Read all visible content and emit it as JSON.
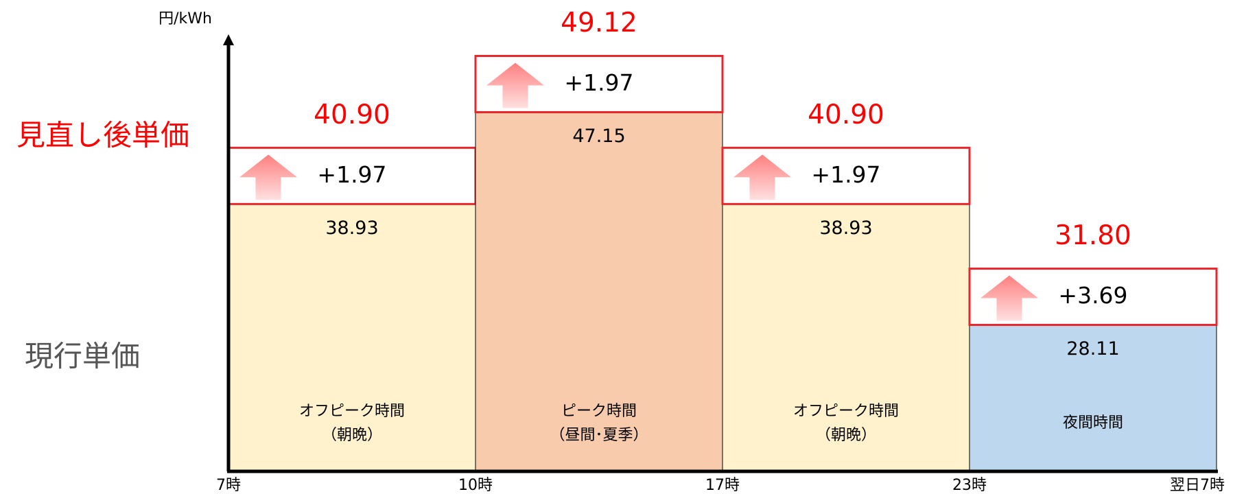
{
  "chart_data": {
    "type": "bar",
    "y_axis_label": "円/kWh",
    "annotations": [
      "見直し後単価",
      "現行単価"
    ],
    "categories": [
      [
        "オフピーク時間",
        "（朝晩）"
      ],
      [
        "ピーク時間",
        "（昼間･夏季）"
      ],
      [
        "オフピーク時間",
        "（朝晩）"
      ],
      [
        "夜間時間"
      ]
    ],
    "x_boundaries": [
      "7時",
      "10時",
      "17時",
      "23時",
      "翌日7時"
    ],
    "values": [
      38.93,
      47.15,
      38.93,
      28.11
    ],
    "colors": [
      "#fff2cc",
      "#f8cbad",
      "#fff2cc",
      "#bdd7ee"
    ],
    "increases": [
      1.97,
      1.97,
      1.97,
      3.69
    ],
    "increase_labels": [
      "+1.97",
      "+1.97",
      "+1.97",
      "+3.69"
    ],
    "revised_values": [
      40.9,
      49.12,
      40.9,
      31.8
    ],
    "revised_labels": [
      "40.90",
      "49.12",
      "40.90",
      "31.80"
    ],
    "revised_color": "#ff0000",
    "ylim": [
      15,
      54
    ]
  }
}
